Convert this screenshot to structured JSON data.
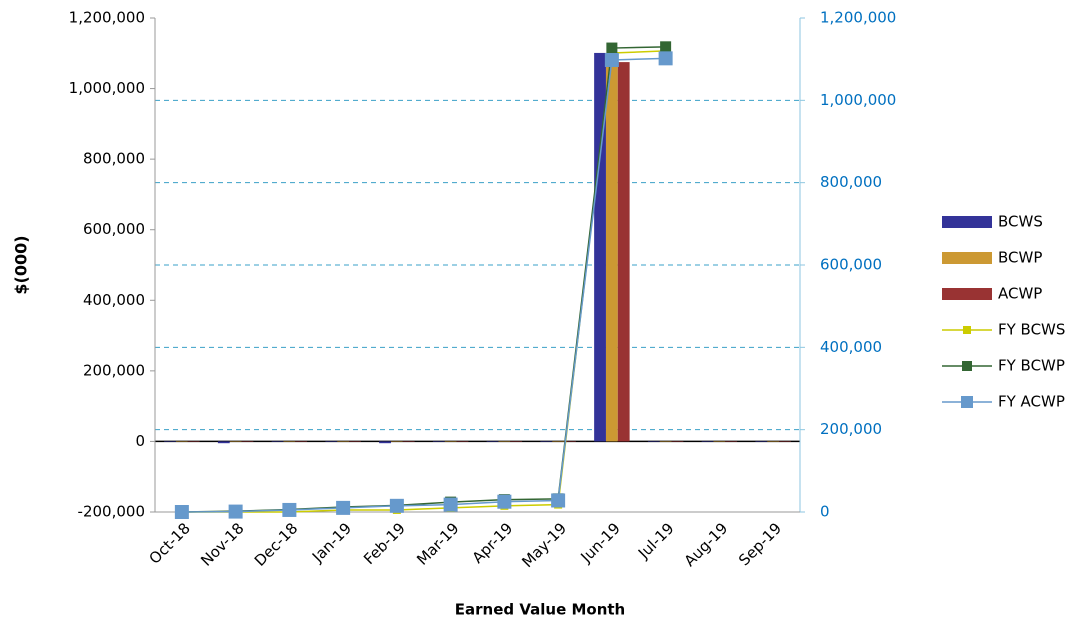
{
  "chart_data": {
    "type": "combo",
    "x_label": "Earned Value Month",
    "y_label": "$(000)",
    "categories": [
      "Oct-18",
      "Nov-18",
      "Dec-18",
      "Jan-19",
      "Feb-19",
      "Mar-19",
      "Apr-19",
      "May-19",
      "Jun-19",
      "Jul-19",
      "Aug-19",
      "Sep-19"
    ],
    "ylim": [
      -200000,
      1200000
    ],
    "yticks": [
      {
        "value": -200000,
        "label": "-200,000"
      },
      0,
      {
        "value": 200000,
        "label": "200,000"
      },
      {
        "value": 400000,
        "label": "400,000"
      },
      {
        "value": 600000,
        "label": "600,000"
      },
      {
        "value": 800000,
        "label": "800,000"
      },
      {
        "value": 1000000,
        "label": "1,000,000"
      },
      {
        "value": 1200000,
        "label": "1,200,000"
      }
    ],
    "y2lim": [
      0,
      1200000
    ],
    "y2ticks": [
      0,
      {
        "value": 200000,
        "label": "200,000"
      },
      {
        "value": 400000,
        "label": "400,000"
      },
      {
        "value": 600000,
        "label": "600,000"
      },
      {
        "value": 800000,
        "label": "800,000"
      },
      {
        "value": 1000000,
        "label": "1,000,000"
      },
      {
        "value": 1200000,
        "label": "1,200,000"
      }
    ],
    "grid": "y2",
    "legend": "right",
    "series": [
      {
        "name": "BCWS",
        "type": "bar",
        "color": "#333399",
        "values": [
          0,
          -5000,
          0,
          0,
          -5000,
          0,
          0,
          0,
          1101000,
          0,
          0,
          0
        ]
      },
      {
        "name": "BCWP",
        "type": "bar",
        "color": "#cc9933",
        "values": [
          0,
          0,
          0,
          0,
          0,
          0,
          0,
          0,
          1080000,
          0,
          0,
          0
        ]
      },
      {
        "name": "ACWP",
        "type": "bar",
        "color": "#993333",
        "values": [
          0,
          0,
          0,
          0,
          0,
          0,
          0,
          0,
          1075000,
          0,
          0,
          0
        ]
      },
      {
        "name": "FY BCWS",
        "type": "line",
        "axis": "y2",
        "color": "#cccc00",
        "values": [
          0,
          0,
          0,
          5000,
          5000,
          10000,
          15000,
          18000,
          1115000,
          1120000,
          null,
          null
        ]
      },
      {
        "name": "FY BCWP",
        "type": "line",
        "axis": "y2",
        "color": "#336633",
        "values": [
          0,
          2000,
          6000,
          12000,
          16000,
          24000,
          30000,
          32000,
          1127000,
          1130000,
          null,
          null
        ]
      },
      {
        "name": "FY ACWP",
        "type": "line",
        "axis": "y2",
        "color": "#6699cc",
        "values": [
          0,
          1000,
          5000,
          10000,
          15000,
          18000,
          25000,
          28000,
          1098000,
          1102000,
          null,
          null
        ]
      }
    ]
  }
}
